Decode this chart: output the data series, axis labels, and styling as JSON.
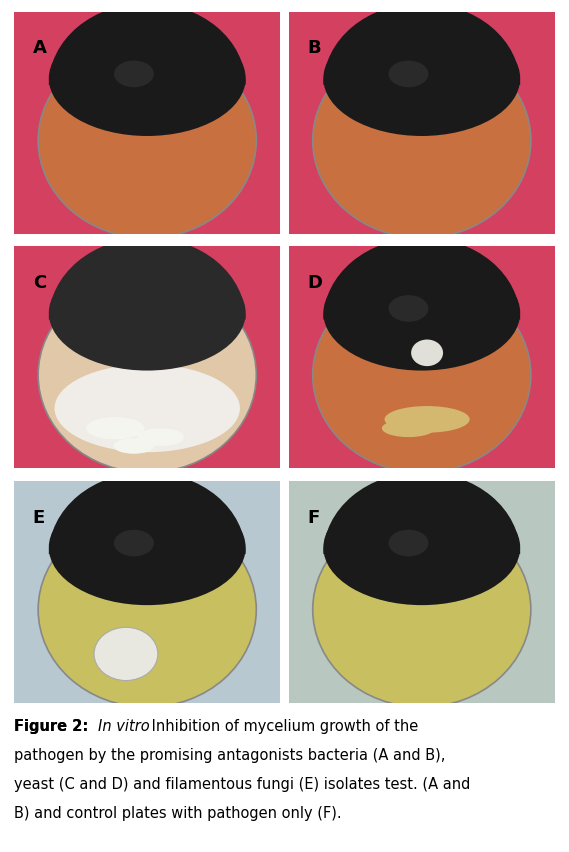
{
  "figure_width": 5.69,
  "figure_height": 8.53,
  "dpi": 100,
  "background_color": "#ffffff",
  "border_color": "#cc6699",
  "border_linewidth": 1.5,
  "panels": [
    {
      "label": "A",
      "row": 0,
      "col": 0
    },
    {
      "label": "B",
      "row": 0,
      "col": 1
    },
    {
      "label": "C",
      "row": 1,
      "col": 0
    },
    {
      "label": "D",
      "row": 1,
      "col": 1
    },
    {
      "label": "E",
      "row": 2,
      "col": 0
    },
    {
      "label": "F",
      "row": 2,
      "col": 1
    }
  ],
  "caption_bold_prefix": "Figure 2: ",
  "caption_italic_part": "In vitro",
  "caption_normal_part": " Inhibition of mycelium growth of the pathogen by the promising antagonists bacteria (A and B), yeast (C and D) and filamentous fungi (E) isolates test. (A and B) and control plates with pathogen only (F).",
  "caption_fontsize": 10.5,
  "label_fontsize": 13,
  "label_color": "#000000",
  "panel_colors": {
    "A_bg": "#d44060",
    "A_plate": "#c87040",
    "A_mold": "#1a1a1a",
    "B_bg": "#d44060",
    "B_plate": "#c87040",
    "B_mold": "#1a1a1a",
    "C_bg": "#d44060",
    "C_plate": "#e8d0b0",
    "C_mold": "#2a2a2a",
    "D_bg": "#d44060",
    "D_plate": "#c87040",
    "D_mold": "#1a1a1a",
    "E_bg": "#b8c8d0",
    "E_plate": "#c8c870",
    "E_mold": "#1a1a1a",
    "F_bg": "#b8c8c0",
    "F_plate": "#c8c870",
    "F_mold": "#1a1a1a"
  }
}
